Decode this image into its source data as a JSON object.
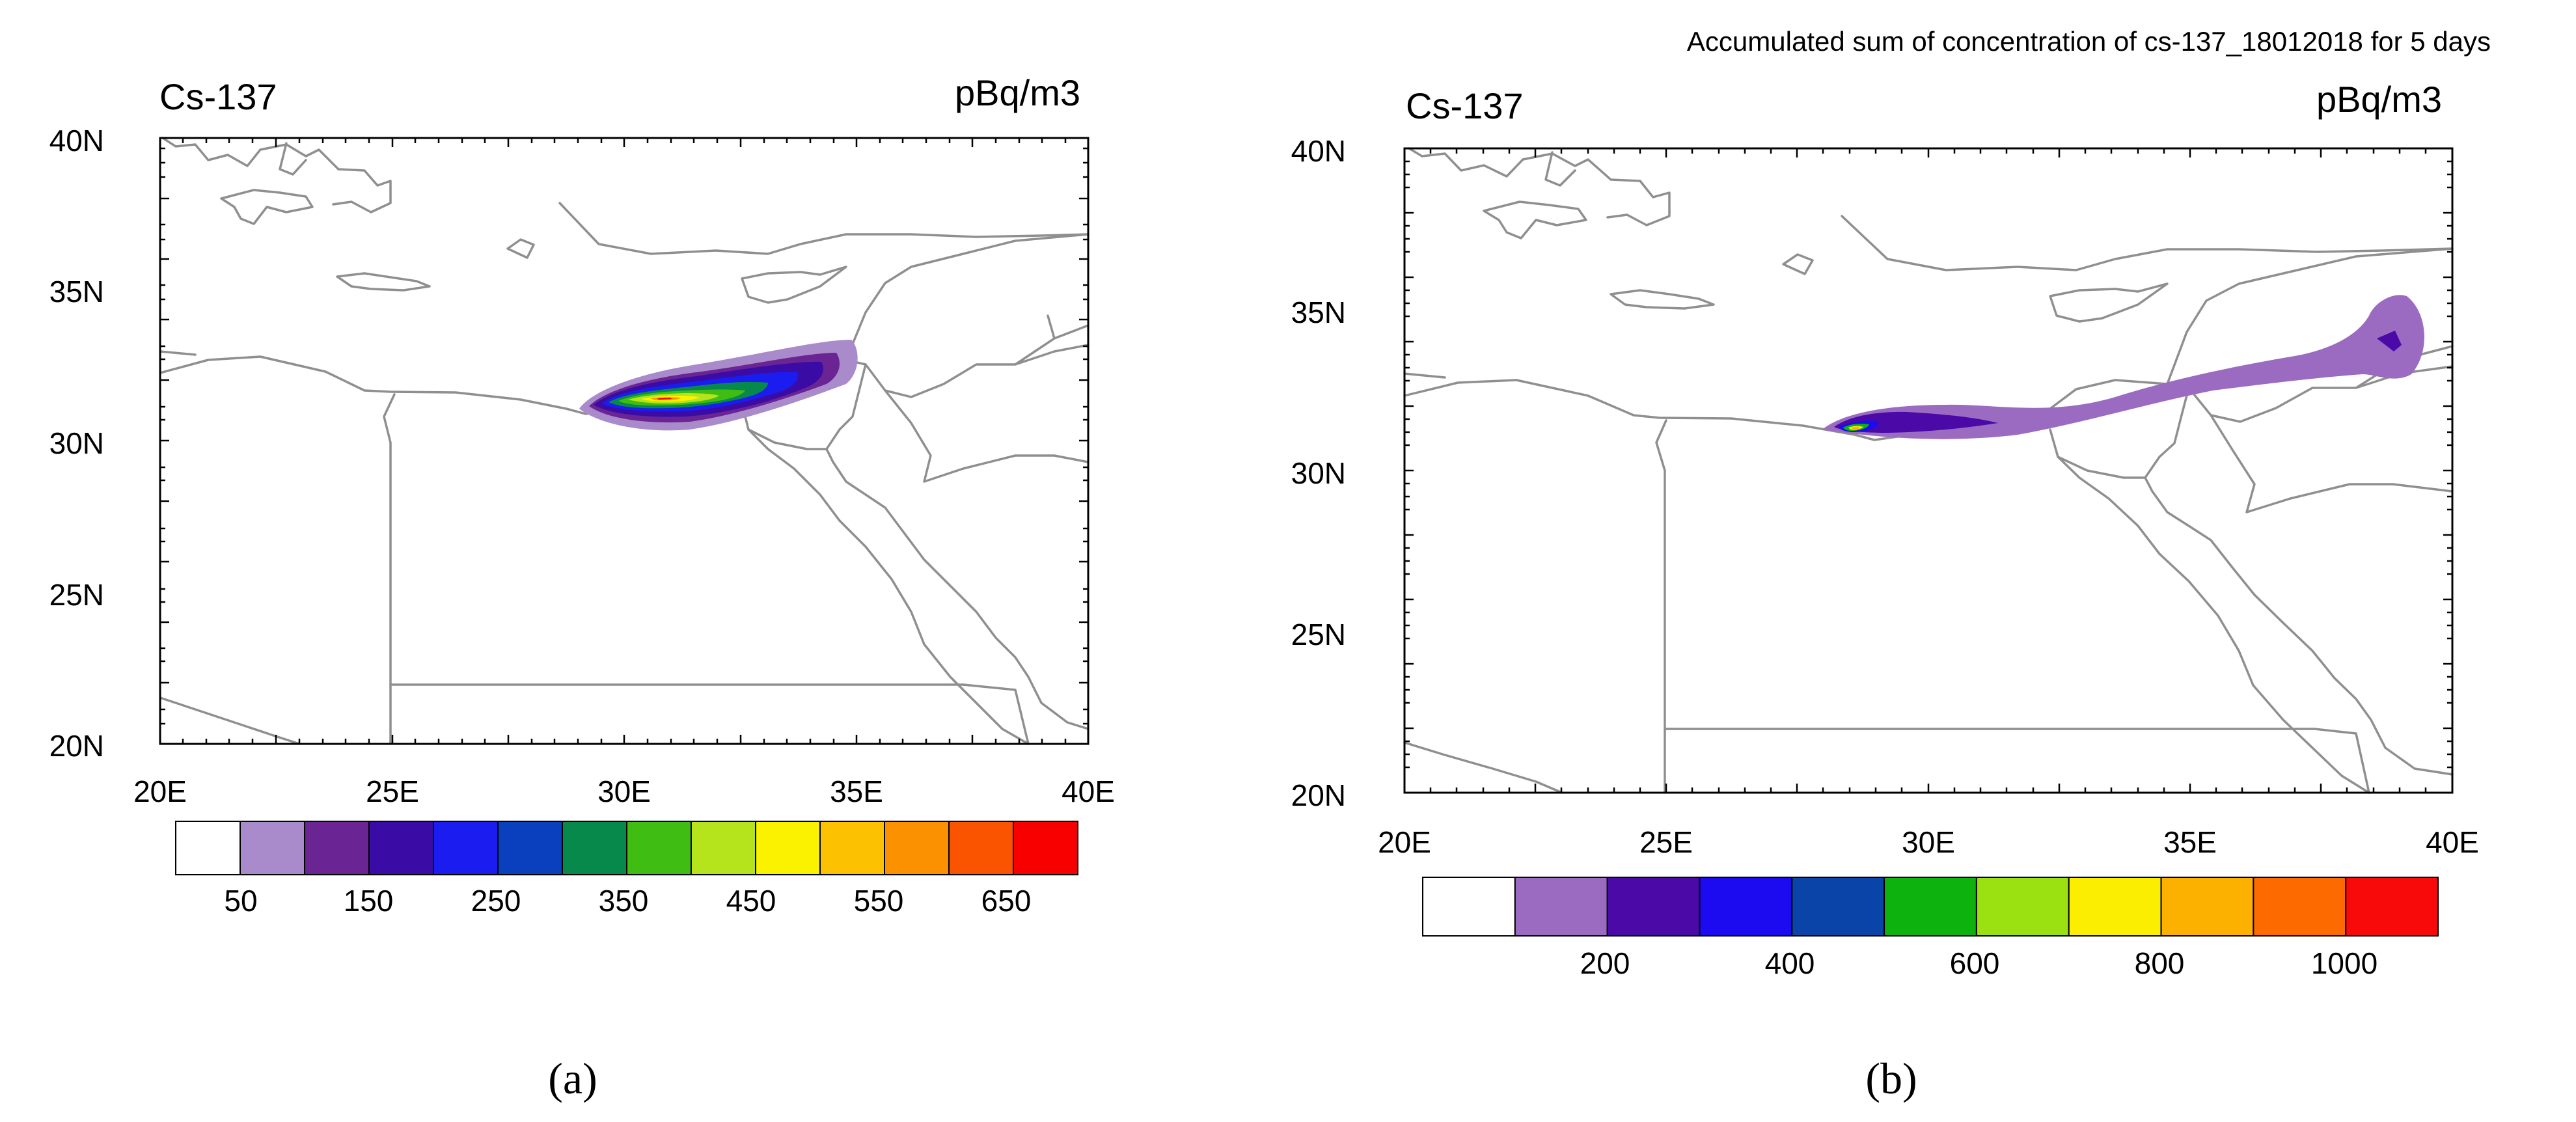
{
  "panels": [
    {
      "id": "a",
      "header_title": "",
      "species": "Cs-137",
      "units": "pBq/m3",
      "lat_labels": [
        "40N",
        "35N",
        "30N",
        "25N",
        "20N"
      ],
      "lon_labels": [
        "20E",
        "25E",
        "30E",
        "35E",
        "40E"
      ],
      "colorbar": {
        "colors": [
          "#ffffff",
          "#a98bcb",
          "#6a2493",
          "#3b0ba6",
          "#1b1cf0",
          "#0a3fbd",
          "#07894c",
          "#3fbd12",
          "#b5e31c",
          "#fbf200",
          "#fcc100",
          "#fc9100",
          "#fb5400",
          "#f80000"
        ],
        "labels": [
          "50",
          "150",
          "250",
          "350",
          "450",
          "550",
          "650"
        ]
      },
      "caption": "(a)"
    },
    {
      "id": "b",
      "header_title": "Accumulated sum of concentration of cs-137_18012018 for 5 days",
      "species": "Cs-137",
      "units": "pBq/m3",
      "lat_labels": [
        "40N",
        "35N",
        "30N",
        "25N",
        "20N"
      ],
      "lon_labels": [
        "20E",
        "25E",
        "30E",
        "35E",
        "40E"
      ],
      "colorbar": {
        "colors": [
          "#ffffff",
          "#9b6bc2",
          "#4b0aa8",
          "#1c0af0",
          "#0b44a8",
          "#0db20f",
          "#9be010",
          "#fbee00",
          "#fcb000",
          "#fc6a00",
          "#f80a0a"
        ],
        "labels": [
          "200",
          "400",
          "600",
          "800",
          "1000"
        ]
      },
      "caption": "(b)"
    }
  ]
}
